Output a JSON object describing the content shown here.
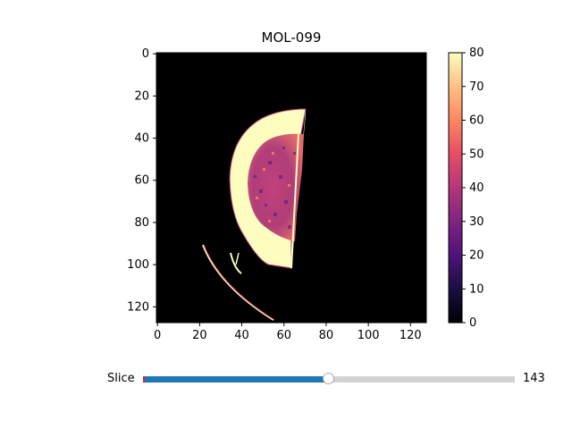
{
  "figure": {
    "title": "MOL-099"
  },
  "image_axes": {
    "xticks": [
      "0",
      "20",
      "40",
      "60",
      "80",
      "100",
      "120"
    ],
    "yticks": [
      "0",
      "20",
      "40",
      "60",
      "80",
      "100",
      "120"
    ],
    "xlim": [
      0,
      128
    ],
    "ylim": [
      128,
      0
    ]
  },
  "colorbar": {
    "colormap": "magma",
    "ticks": [
      "0",
      "10",
      "20",
      "30",
      "40",
      "50",
      "60",
      "70",
      "80"
    ],
    "range": [
      0,
      80
    ]
  },
  "slider": {
    "label": "Slice",
    "value": "143",
    "fraction": 0.5
  },
  "colors": {
    "slider_fill": "#1f77b4",
    "slider_track": "#d3d3d3",
    "slider_start": "#d62728"
  }
}
